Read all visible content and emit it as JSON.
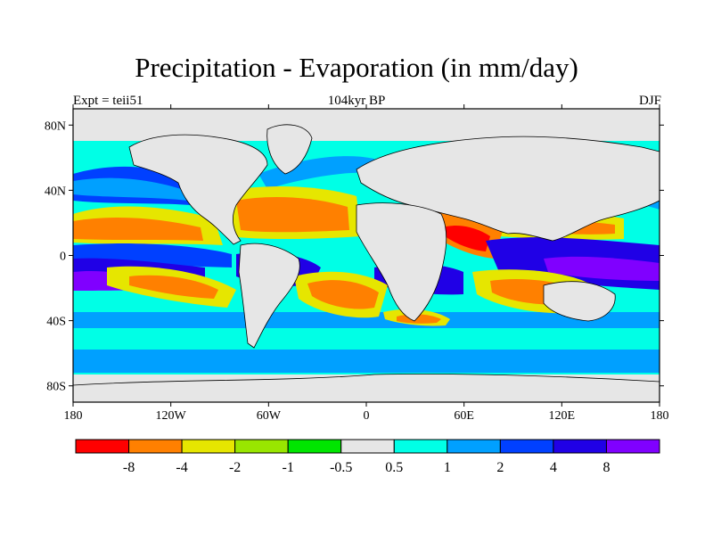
{
  "title": "Precipitation - Evaporation (in mm/day)",
  "subtitle_left": "Expt = teii51",
  "subtitle_center": "104kyr BP",
  "subtitle_right": "DJF",
  "lon_ticks": [
    "180",
    "120W",
    "60W",
    "0",
    "60E",
    "120E",
    "180"
  ],
  "lat_ticks": [
    "80N",
    "40N",
    "0",
    "40S",
    "80S"
  ],
  "colorbar": {
    "labels": [
      "-8",
      "-4",
      "-2",
      "-1",
      "-0.5",
      "0.5",
      "1",
      "2",
      "4",
      "8"
    ],
    "colors": [
      "#ff0000",
      "#ff8000",
      "#e6e600",
      "#99e600",
      "#00e600",
      "#e6e6e6",
      "#00ffe6",
      "#00a0ff",
      "#0040ff",
      "#2000e6",
      "#8000ff"
    ]
  },
  "colors": {
    "land": "#e6e6e6",
    "coast": "#000000"
  }
}
